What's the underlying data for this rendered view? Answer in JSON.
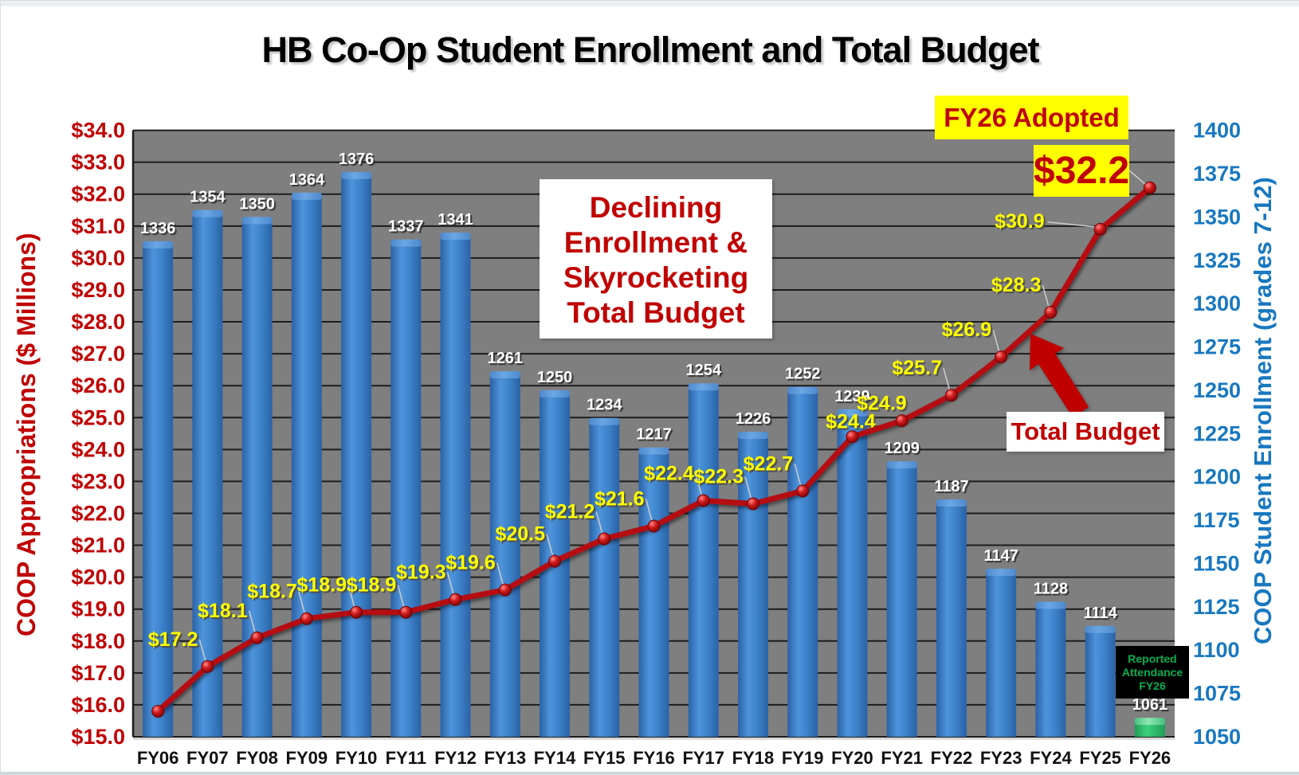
{
  "chart_data": {
    "type": "combo",
    "title": "HB Co-Op Student Enrollment and Total Budget",
    "categories": [
      "FY06",
      "FY07",
      "FY08",
      "FY09",
      "FY10",
      "FY11",
      "FY12",
      "FY13",
      "FY14",
      "FY15",
      "FY16",
      "FY17",
      "FY18",
      "FY19",
      "FY20",
      "FY21",
      "FY22",
      "FY23",
      "FY24",
      "FY25",
      "FY26"
    ],
    "left_axis": {
      "label": "COOP Appropriations ($ Millions)",
      "min": 15.0,
      "max": 34.0,
      "tick_step": 1.0,
      "ticks": [
        "$15.0",
        "$16.0",
        "$17.0",
        "$18.0",
        "$19.0",
        "$20.0",
        "$21.0",
        "$22.0",
        "$23.0",
        "$24.0",
        "$25.0",
        "$26.0",
        "$27.0",
        "$28.0",
        "$29.0",
        "$30.0",
        "$31.0",
        "$32.0",
        "$33.0",
        "$34.0"
      ]
    },
    "right_axis": {
      "label": "COOP Student Enrollment (grades 7-12)",
      "min": 1050,
      "max": 1400,
      "tick_step": 25,
      "ticks": [
        "1050",
        "1075",
        "1100",
        "1125",
        "1150",
        "1175",
        "1200",
        "1225",
        "1250",
        "1275",
        "1300",
        "1325",
        "1350",
        "1375",
        "1400"
      ]
    },
    "grid": "horizontal, every $1.0, dark lines on gray plot background",
    "series": [
      {
        "name": "COOP Student Enrollment",
        "type": "bar",
        "axis": "right",
        "values": [
          1336,
          1354,
          1350,
          1364,
          1376,
          1337,
          1341,
          1261,
          1250,
          1234,
          1217,
          1254,
          1226,
          1252,
          1239,
          1209,
          1187,
          1147,
          1128,
          1114,
          1061
        ],
        "value_labels": [
          "1336",
          "1354",
          "1350",
          "1364",
          "1376",
          "1337",
          "1341",
          "1261",
          "1250",
          "1234",
          "1217",
          "1254",
          "1226",
          "1252",
          "1239",
          "1209",
          "1187",
          "1147",
          "1128",
          "1114",
          "1061"
        ],
        "last_bar_highlight": "green (Reported Attendance FY26)"
      },
      {
        "name": "Total Budget",
        "type": "line",
        "axis": "left",
        "values": [
          15.8,
          17.2,
          18.1,
          18.7,
          18.9,
          18.9,
          19.3,
          19.6,
          20.5,
          21.2,
          21.6,
          22.4,
          22.3,
          22.7,
          24.4,
          24.9,
          25.7,
          26.9,
          28.3,
          30.9,
          32.2
        ],
        "value_labels": [
          "",
          "$17.2",
          "$18.1",
          "$18.7",
          "$18.9",
          "$18.9",
          "$19.3",
          "$19.6",
          "$20.5",
          "$21.2",
          "$21.6",
          "$22.4",
          "$22.3",
          "$22.7",
          "$24.4",
          "$24.9",
          "$25.7",
          "$26.9",
          "$28.3",
          "$30.9",
          "$32.2"
        ]
      }
    ]
  },
  "annotations": {
    "declining": {
      "lines": [
        "Declining",
        "Enrollment &",
        "Skyrocketing",
        "Total Budget"
      ]
    },
    "fy26_adopted": "FY26 Adopted",
    "fy26_value": "$32.2",
    "total_budget_callout": "Total Budget",
    "reported_attendance": {
      "lines": [
        "Reported",
        "Attendance",
        "FY26"
      ]
    }
  },
  "colors": {
    "plot_bg": "#7f7f7f",
    "grid": "#1c1c1c",
    "bar_blue": "#3f85cd",
    "bar_blue_dark": "#2a62a6",
    "bar_blue_light": "#6aa7e4",
    "bar_green": "#2bb568",
    "bar_green_light": "#8fe6b4",
    "line_red": "#b50d12",
    "marker_red": "#d11b1b",
    "axis_left_text": "#c00000",
    "axis_right_text": "#1878c0",
    "x_label_text": "#111111",
    "yellow_label": "#ffff00",
    "bar_label": "#ffffff",
    "leader_line": "#c8c8c8",
    "arrow_red": "#c00000",
    "attendance_green": "#00b050"
  }
}
